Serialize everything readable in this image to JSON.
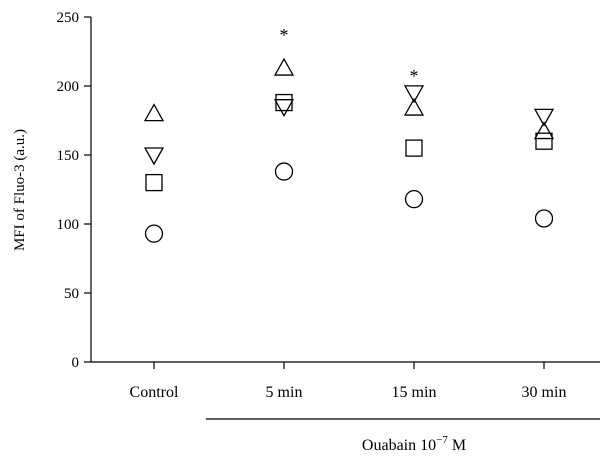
{
  "chart_data": {
    "type": "scatter",
    "ylabel": "MFI of Fluo-3 (a.u.)",
    "ylim": [
      0,
      250
    ],
    "yticks": [
      0,
      50,
      100,
      150,
      200,
      250
    ],
    "categories": [
      "Control",
      "5 min",
      "15 min",
      "30 min"
    ],
    "group_label": {
      "prefix": "Ouabain 10",
      "exponent": "−7",
      "suffix": " M"
    },
    "group_covers": [
      "5 min",
      "15 min",
      "30 min"
    ],
    "significance": [
      {
        "category": "5 min",
        "symbol": "*",
        "y": 240
      },
      {
        "category": "15 min",
        "symbol": "*",
        "y": 210
      }
    ],
    "series": [
      {
        "marker": "triangle-up",
        "values": [
          180,
          213,
          184,
          167
        ]
      },
      {
        "marker": "triangle-down",
        "values": [
          150,
          185,
          195,
          178
        ]
      },
      {
        "marker": "square",
        "values": [
          130,
          188,
          155,
          160
        ]
      },
      {
        "marker": "circle",
        "values": [
          93,
          138,
          118,
          104
        ]
      }
    ]
  }
}
